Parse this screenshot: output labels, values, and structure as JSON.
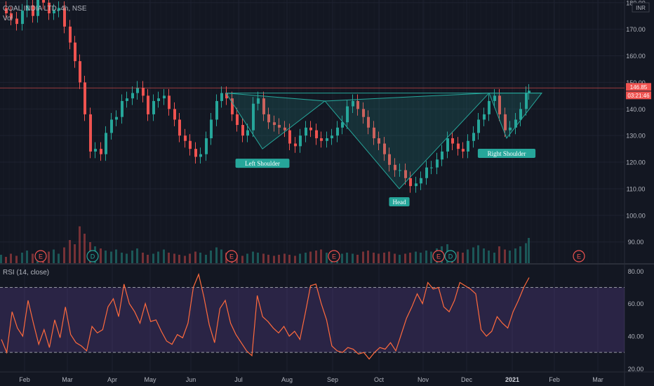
{
  "header": {
    "symbol": "COAL INDIA LTD, 4h, NSE",
    "vol_label": "Vol"
  },
  "rsi_title": "RSI (14, close)",
  "currency": "INR",
  "colors": {
    "background": "#131722",
    "up": "#26a69a",
    "down": "#ef5350",
    "rsi_line": "#ff6a3d",
    "rsi_band": "#7e57c2",
    "pattern": "#26a69a",
    "price_tag": "#ef5350"
  },
  "chart_data": [
    {
      "type": "line",
      "subtype": "candlestick",
      "title": "COAL INDIA LTD, 4h, NSE",
      "x_ticks": [
        "Feb",
        "Mar",
        "Apr",
        "May",
        "Jun",
        "Jul",
        "Aug",
        "Sep",
        "Oct",
        "Nov",
        "Dec",
        "2021",
        "Feb",
        "Mar"
      ],
      "y_ticks": [
        "90.00",
        "100.00",
        "110.00",
        "120.00",
        "130.00",
        "140.00",
        "150.00",
        "160.00",
        "170.00",
        "180.00"
      ],
      "ylim": [
        82,
        181
      ],
      "price_tags": [
        "146.85",
        "03:21:46"
      ],
      "series": [
        {
          "x": [
            0,
            7,
            14,
            22,
            30,
            37,
            45,
            52,
            60,
            68,
            75,
            82,
            90,
            98,
            105,
            112,
            119,
            127,
            134,
            142,
            149,
            157,
            164,
            172,
            179,
            187,
            194,
            202,
            209,
            217,
            224,
            232,
            239,
            247,
            254,
            262,
            269,
            277,
            284,
            292,
            299,
            307,
            314,
            321,
            329,
            336,
            344,
            351,
            359,
            366,
            374,
            381,
            389,
            396,
            404,
            411,
            419,
            426,
            434,
            441,
            449,
            456,
            464,
            471,
            479,
            486,
            493,
            501,
            508,
            516,
            523,
            531,
            538,
            546,
            553,
            561,
            568,
            576,
            583,
            591,
            598,
            606,
            613,
            621,
            628,
            636,
            643,
            651,
            658,
            665,
            673,
            680,
            688,
            695,
            703,
            710,
            718,
            725,
            733,
            740,
            748,
            752
          ],
          "close": [
            178,
            176,
            174,
            172,
            177,
            179,
            175,
            182,
            180,
            176,
            177,
            178,
            171,
            165,
            158,
            150,
            138,
            124,
            125,
            123,
            131,
            136,
            137,
            143,
            144,
            146,
            148,
            145,
            138,
            143,
            144,
            145,
            140,
            136,
            130,
            128,
            125,
            122,
            123,
            129,
            136,
            143,
            146,
            144,
            138,
            134,
            130,
            132,
            142,
            144,
            138,
            135,
            134,
            133,
            132,
            127,
            126,
            130,
            133,
            132,
            129,
            128,
            129,
            130,
            133,
            135,
            141,
            143,
            140,
            137,
            133,
            129,
            127,
            123,
            119,
            117,
            117,
            114,
            111,
            112,
            114,
            118,
            118,
            121,
            124,
            129,
            127,
            125,
            124,
            128,
            131,
            136,
            138,
            143,
            145,
            138,
            132,
            133,
            136,
            140,
            146,
            146.85
          ]
        },
        {
          "name": "Vol",
          "values": [
            8,
            6,
            9,
            7,
            10,
            12,
            9,
            8,
            7,
            11,
            13,
            9,
            15,
            22,
            18,
            35,
            28,
            20,
            16,
            14,
            12,
            11,
            13,
            10,
            9,
            12,
            14,
            10,
            8,
            9,
            11,
            13,
            10,
            9,
            8,
            7,
            9,
            11,
            10,
            8,
            12,
            15,
            13,
            10,
            9,
            8,
            7,
            9,
            11,
            10,
            9,
            8,
            7,
            8,
            9,
            8,
            7,
            9,
            10,
            11,
            12,
            13,
            10,
            9,
            8,
            9,
            10,
            9,
            8,
            11,
            12,
            10,
            9,
            10,
            11,
            9,
            8,
            9,
            10,
            11,
            10,
            12,
            11,
            14,
            16,
            18,
            12,
            11,
            10,
            13,
            15,
            17,
            14,
            12,
            10,
            16,
            13,
            12,
            14,
            16,
            19,
            24
          ]
        }
      ],
      "pattern": {
        "name": "Head and Shoulders (inverse)",
        "labels": [
          "Left Shoulder",
          "Head",
          "Right Shoulder"
        ],
        "points": [
          {
            "x": 322,
            "y": 146
          },
          {
            "x": 374,
            "y": 125
          },
          {
            "x": 463,
            "y": 143
          },
          {
            "x": 569,
            "y": 110
          },
          {
            "x": 697,
            "y": 146
          },
          {
            "x": 722,
            "y": 129
          },
          {
            "x": 772,
            "y": 146
          }
        ]
      },
      "event_markers": [
        {
          "label": "E",
          "x": 58
        },
        {
          "label": "D",
          "x": 132
        },
        {
          "label": "E",
          "x": 330
        },
        {
          "label": "E",
          "x": 476
        },
        {
          "label": "E",
          "x": 625
        },
        {
          "label": "D",
          "x": 642
        },
        {
          "label": "E",
          "x": 825
        }
      ]
    },
    {
      "type": "line",
      "title": "RSI (14, close)",
      "y_ticks": [
        "20.00",
        "40.00",
        "60.00",
        "80.00"
      ],
      "ylim": [
        18,
        84
      ],
      "bands": [
        30,
        70
      ],
      "series": [
        {
          "name": "RSI",
          "values": [
            38,
            30,
            55,
            45,
            40,
            62,
            48,
            35,
            44,
            33,
            50,
            39,
            58,
            41,
            36,
            34,
            31,
            46,
            42,
            44,
            58,
            63,
            52,
            72,
            60,
            55,
            48,
            60,
            49,
            50,
            43,
            37,
            35,
            41,
            39,
            48,
            70,
            78,
            64,
            47,
            36,
            57,
            62,
            48,
            41,
            36,
            31,
            28,
            65,
            52,
            49,
            45,
            42,
            46,
            40,
            43,
            38,
            54,
            71,
            72,
            60,
            50,
            34,
            31,
            30,
            33,
            32,
            29,
            30,
            26,
            30,
            33,
            32,
            36,
            31,
            41,
            51,
            58,
            66,
            60,
            73,
            69,
            70,
            58,
            55,
            62,
            73,
            71,
            69,
            66,
            44,
            40,
            43,
            52,
            48,
            45,
            55,
            62,
            70,
            76
          ]
        }
      ]
    }
  ]
}
